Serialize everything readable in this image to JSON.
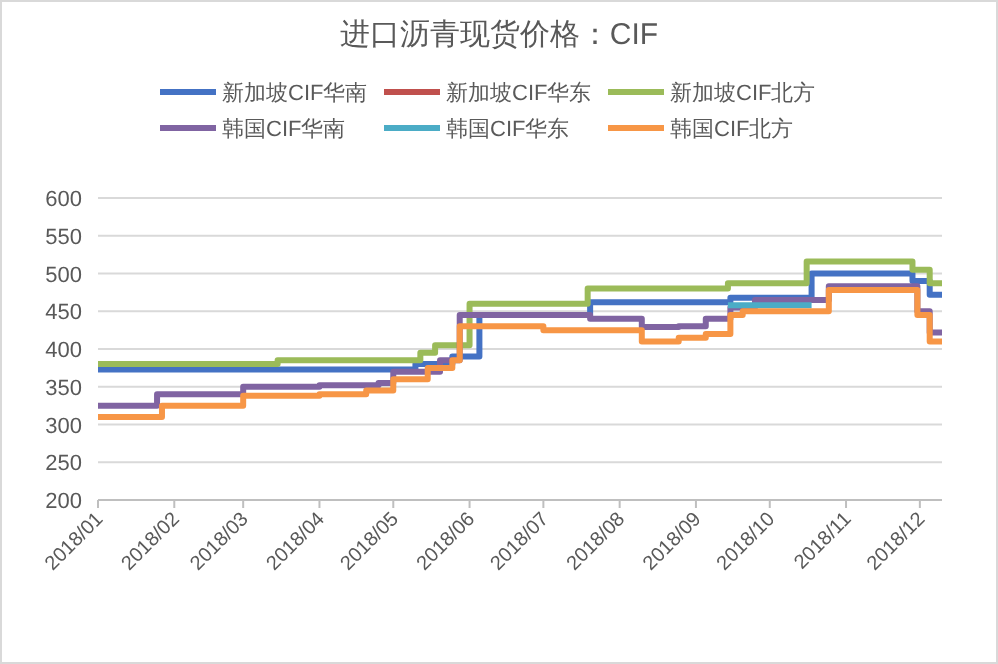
{
  "chart_data": {
    "type": "step",
    "title": "进口沥青现货价格：CIF",
    "grid": "y",
    "legend": "top",
    "xlim": [
      "2018-01-01",
      "2018-12-10"
    ],
    "ylim": [
      200,
      600
    ],
    "yticks": [
      200,
      250,
      300,
      350,
      400,
      450,
      500,
      550,
      600
    ],
    "xticks": [
      {
        "value": "2018-01",
        "label": "2018/01"
      },
      {
        "value": "2018-02",
        "label": "2018/02"
      },
      {
        "value": "2018-03",
        "label": "2018/03"
      },
      {
        "value": "2018-04",
        "label": "2018/04"
      },
      {
        "value": "2018-05",
        "label": "2018/05"
      },
      {
        "value": "2018-06",
        "label": "2018/06"
      },
      {
        "value": "2018-07",
        "label": "2018/07"
      },
      {
        "value": "2018-08",
        "label": "2018/08"
      },
      {
        "value": "2018-09",
        "label": "2018/09"
      },
      {
        "value": "2018-10",
        "label": "2018/10"
      },
      {
        "value": "2018-11",
        "label": "2018/11"
      },
      {
        "value": "2018-12",
        "label": "2018/12"
      }
    ],
    "series": [
      {
        "name": "新加坡CIF华南",
        "color": "#4472c4",
        "x": [
          "2018-01-01",
          "2018-05-10",
          "2018-05-25",
          "2018-06-05",
          "2018-07-20",
          "2018-09-15",
          "2018-10-18",
          "2018-11-28",
          "2018-12-05",
          "2018-12-10"
        ],
        "values": [
          373,
          380,
          390,
          445,
          462,
          468,
          500,
          490,
          472,
          472
        ]
      },
      {
        "name": "新加坡CIF华东",
        "color": "#c0504d"
      },
      {
        "name": "新加坡CIF北方",
        "color": "#9bbb59",
        "x": [
          "2018-01-01",
          "2018-03-15",
          "2018-05-12",
          "2018-05-18",
          "2018-06-01",
          "2018-07-19",
          "2018-09-14",
          "2018-10-16",
          "2018-11-28",
          "2018-12-05",
          "2018-12-10"
        ],
        "values": [
          380,
          385,
          395,
          405,
          460,
          480,
          487,
          516,
          505,
          487,
          487
        ]
      },
      {
        "name": "韩国CIF华南",
        "color": "#8064a2",
        "x": [
          "2018-01-01",
          "2018-01-25",
          "2018-03-01",
          "2018-04-01",
          "2018-04-25",
          "2018-05-01",
          "2018-05-20",
          "2018-05-28",
          "2018-07-20",
          "2018-08-10",
          "2018-08-25",
          "2018-09-05",
          "2018-09-15",
          "2018-09-25",
          "2018-10-25",
          "2018-11-30",
          "2018-12-05",
          "2018-12-10"
        ],
        "values": [
          325,
          340,
          350,
          352,
          355,
          370,
          385,
          445,
          440,
          429,
          430,
          440,
          455,
          465,
          483,
          450,
          422,
          422
        ]
      },
      {
        "name": "韩国CIF华东",
        "color": "#4bacc6",
        "x": [
          "2018-09-14",
          "2018-10-18"
        ],
        "values": [
          458,
          458
        ]
      },
      {
        "name": "韩国CIF北方",
        "color": "#f79646",
        "x": [
          "2018-01-01",
          "2018-01-27",
          "2018-03-01",
          "2018-04-01",
          "2018-04-20",
          "2018-05-01",
          "2018-05-15",
          "2018-05-25",
          "2018-05-28",
          "2018-07-01",
          "2018-08-10",
          "2018-08-25",
          "2018-09-05",
          "2018-09-15",
          "2018-09-20",
          "2018-10-25",
          "2018-11-30",
          "2018-12-05",
          "2018-12-10"
        ],
        "values": [
          310,
          325,
          338,
          340,
          345,
          360,
          375,
          385,
          430,
          425,
          410,
          415,
          420,
          445,
          450,
          478,
          445,
          410,
          410
        ]
      }
    ]
  }
}
